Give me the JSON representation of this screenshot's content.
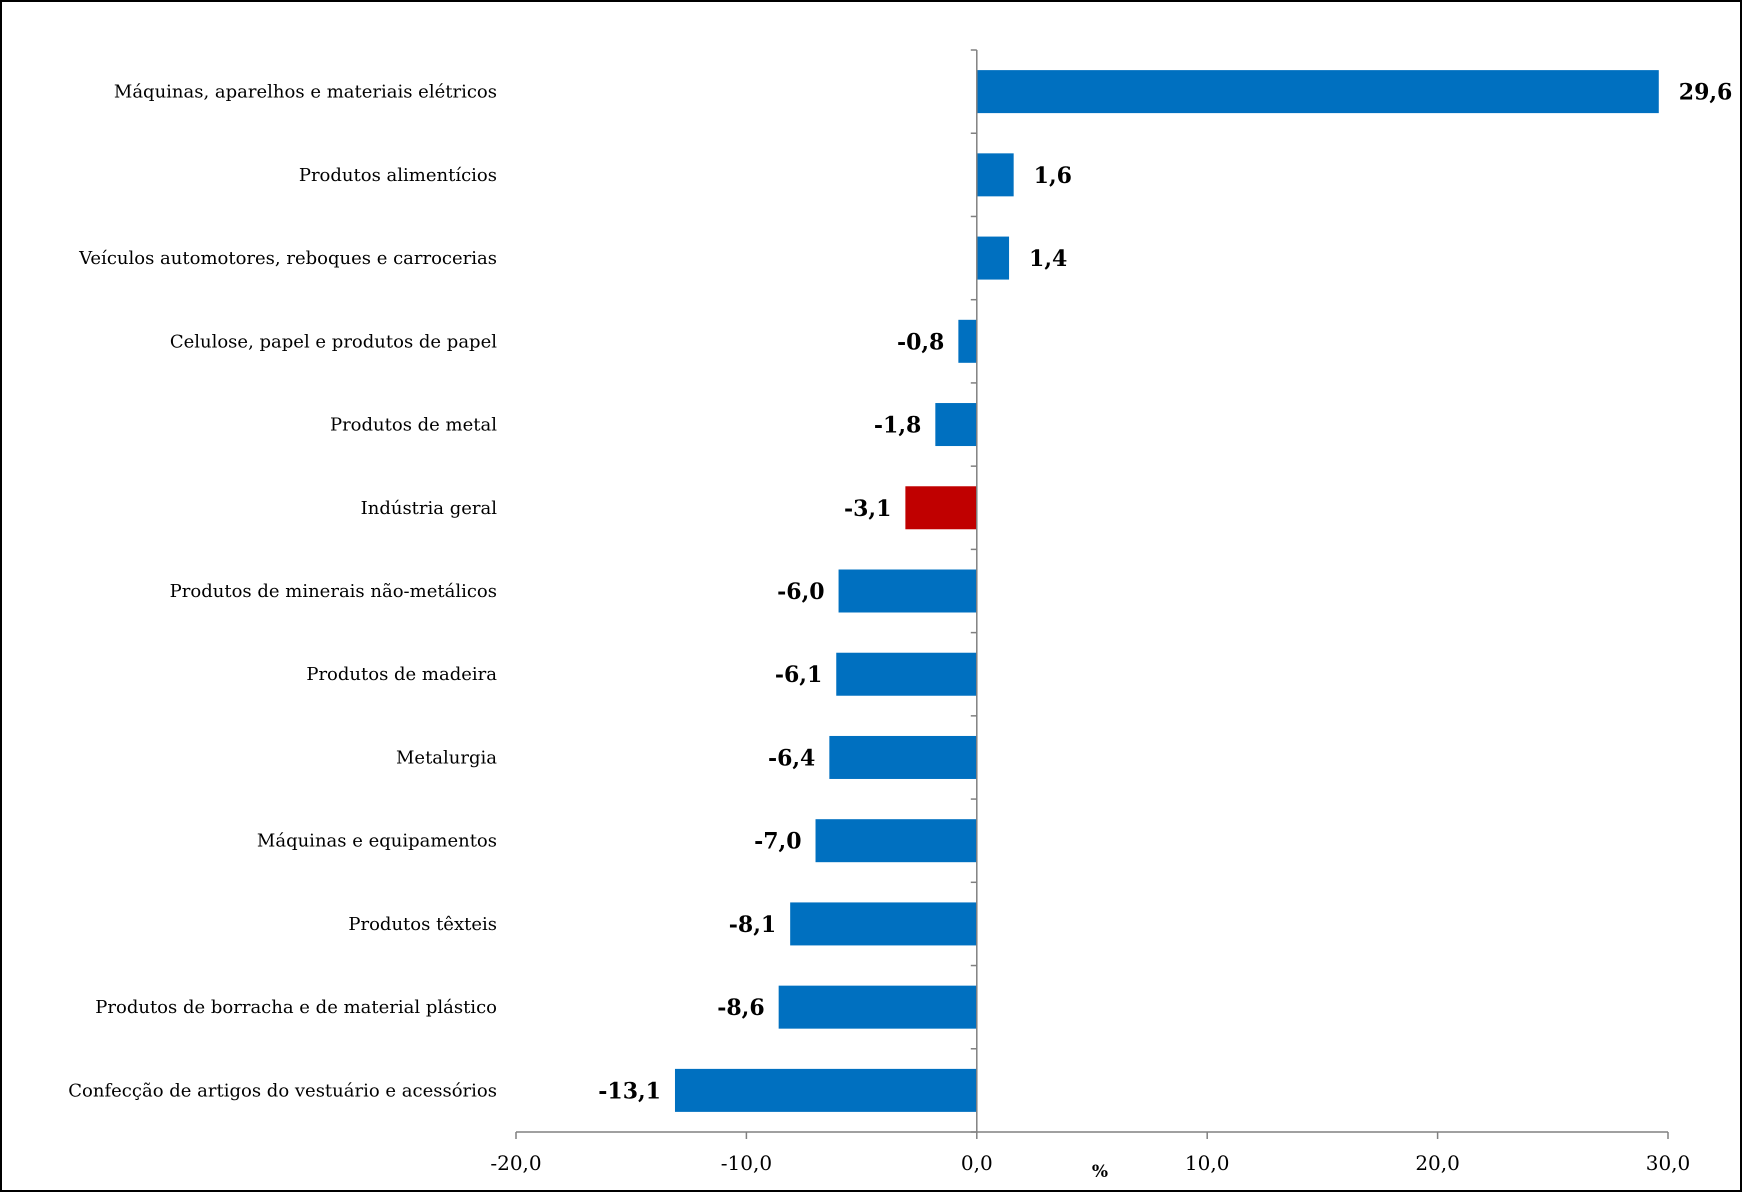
{
  "chart_data": {
    "type": "bar",
    "orientation": "horizontal",
    "categories": [
      "Máquinas, aparelhos e materiais elétricos",
      "Produtos alimentícios",
      "Veículos automotores, reboques e carrocerias",
      "Celulose, papel e produtos de papel",
      "Produtos de metal",
      "Indústria geral",
      "Produtos de minerais não-metálicos",
      "Produtos de madeira",
      "Metalurgia",
      "Máquinas e equipamentos",
      "Produtos têxteis",
      "Produtos de borracha e de material plástico",
      "Confecção de artigos do vestuário e acessórios"
    ],
    "values": [
      29.6,
      1.6,
      1.4,
      -0.8,
      -1.8,
      -3.1,
      -6.0,
      -6.1,
      -6.4,
      -7.0,
      -8.1,
      -8.6,
      -13.1
    ],
    "value_labels": [
      "29,6",
      "1,6",
      "1,4",
      "-0,8",
      "-1,8",
      "-3,1",
      "-6,0",
      "-6,1",
      "-6,4",
      "-7,0",
      "-8,1",
      "-8,6",
      "-13,1"
    ],
    "highlight_category": "Indústria geral",
    "xlabel": "%",
    "xlim": [
      -20,
      30
    ],
    "x_ticks": [
      -20,
      -10,
      0,
      10,
      20,
      30
    ],
    "x_tick_labels": [
      "-20,0",
      "-10,0",
      "0,0",
      "10,0",
      "20,0",
      "30,0"
    ],
    "grid": false,
    "colors": {
      "bar": "#0070C0",
      "highlight": "#C00000",
      "axis": "#808080"
    }
  }
}
